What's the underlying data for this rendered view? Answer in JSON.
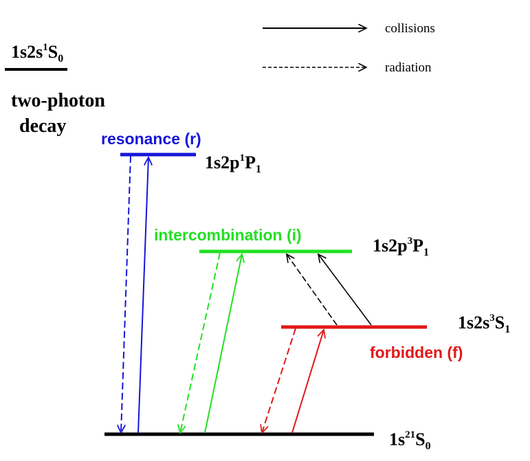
{
  "legend": {
    "collisions": "collisions",
    "radiation": "radiation"
  },
  "states": {
    "singlet_s": {
      "main": "1s2s",
      "sup": "1",
      "term": "S",
      "sub": "0",
      "note_line1": "two-photon",
      "note_line2": "decay"
    },
    "resonance": {
      "name": "resonance (r)",
      "main": "1s2p",
      "sup": "1",
      "term": "P",
      "sub": "1"
    },
    "intercombination": {
      "name": "intercombination (i)",
      "main": "1s2p",
      "sup": "3",
      "term": "P",
      "sub": "1"
    },
    "forbidden": {
      "name": "forbidden (f)",
      "main": "1s2s",
      "sup": "3",
      "term": "S",
      "sub": "1"
    },
    "ground": {
      "main": "1s",
      "sup": "2",
      "mid": "1",
      "term": "S",
      "sub": "0"
    }
  },
  "colors": {
    "resonance": "#1515d8",
    "intercombination": "#22e022",
    "forbidden": "#e01818",
    "black": "#000000"
  }
}
